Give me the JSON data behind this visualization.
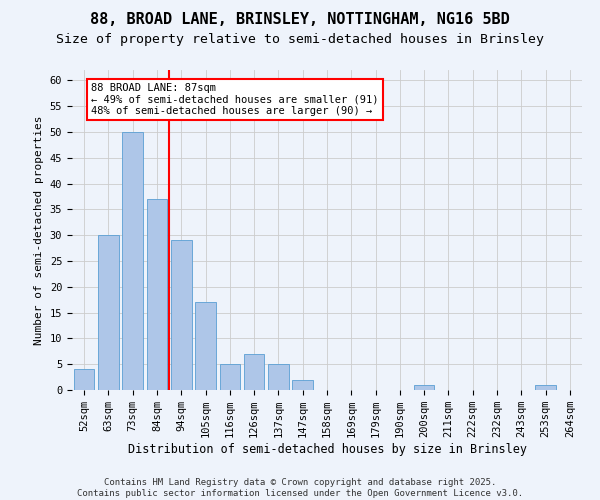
{
  "title1": "88, BROAD LANE, BRINSLEY, NOTTINGHAM, NG16 5BD",
  "title2": "Size of property relative to semi-detached houses in Brinsley",
  "xlabel": "Distribution of semi-detached houses by size in Brinsley",
  "ylabel": "Number of semi-detached properties",
  "categories": [
    "52sqm",
    "63sqm",
    "73sqm",
    "84sqm",
    "94sqm",
    "105sqm",
    "116sqm",
    "126sqm",
    "137sqm",
    "147sqm",
    "158sqm",
    "169sqm",
    "179sqm",
    "190sqm",
    "200sqm",
    "211sqm",
    "222sqm",
    "232sqm",
    "243sqm",
    "253sqm",
    "264sqm"
  ],
  "values": [
    4,
    30,
    50,
    37,
    29,
    17,
    5,
    7,
    5,
    2,
    0,
    0,
    0,
    0,
    1,
    0,
    0,
    0,
    0,
    1,
    0
  ],
  "bar_color": "#aec6e8",
  "bar_edge_color": "#5a9fd4",
  "vline_x": 3.5,
  "vline_color": "red",
  "annotation_text": "88 BROAD LANE: 87sqm\n← 49% of semi-detached houses are smaller (91)\n48% of semi-detached houses are larger (90) →",
  "annotation_box_color": "white",
  "annotation_box_edge": "red",
  "ylim": [
    0,
    62
  ],
  "yticks": [
    0,
    5,
    10,
    15,
    20,
    25,
    30,
    35,
    40,
    45,
    50,
    55,
    60
  ],
  "grid_color": "#cccccc",
  "background_color": "#eef3fb",
  "footnote": "Contains HM Land Registry data © Crown copyright and database right 2025.\nContains public sector information licensed under the Open Government Licence v3.0.",
  "title1_fontsize": 11,
  "title2_fontsize": 9.5,
  "xlabel_fontsize": 8.5,
  "ylabel_fontsize": 8,
  "tick_fontsize": 7.5,
  "annot_fontsize": 7.5,
  "footnote_fontsize": 6.5
}
